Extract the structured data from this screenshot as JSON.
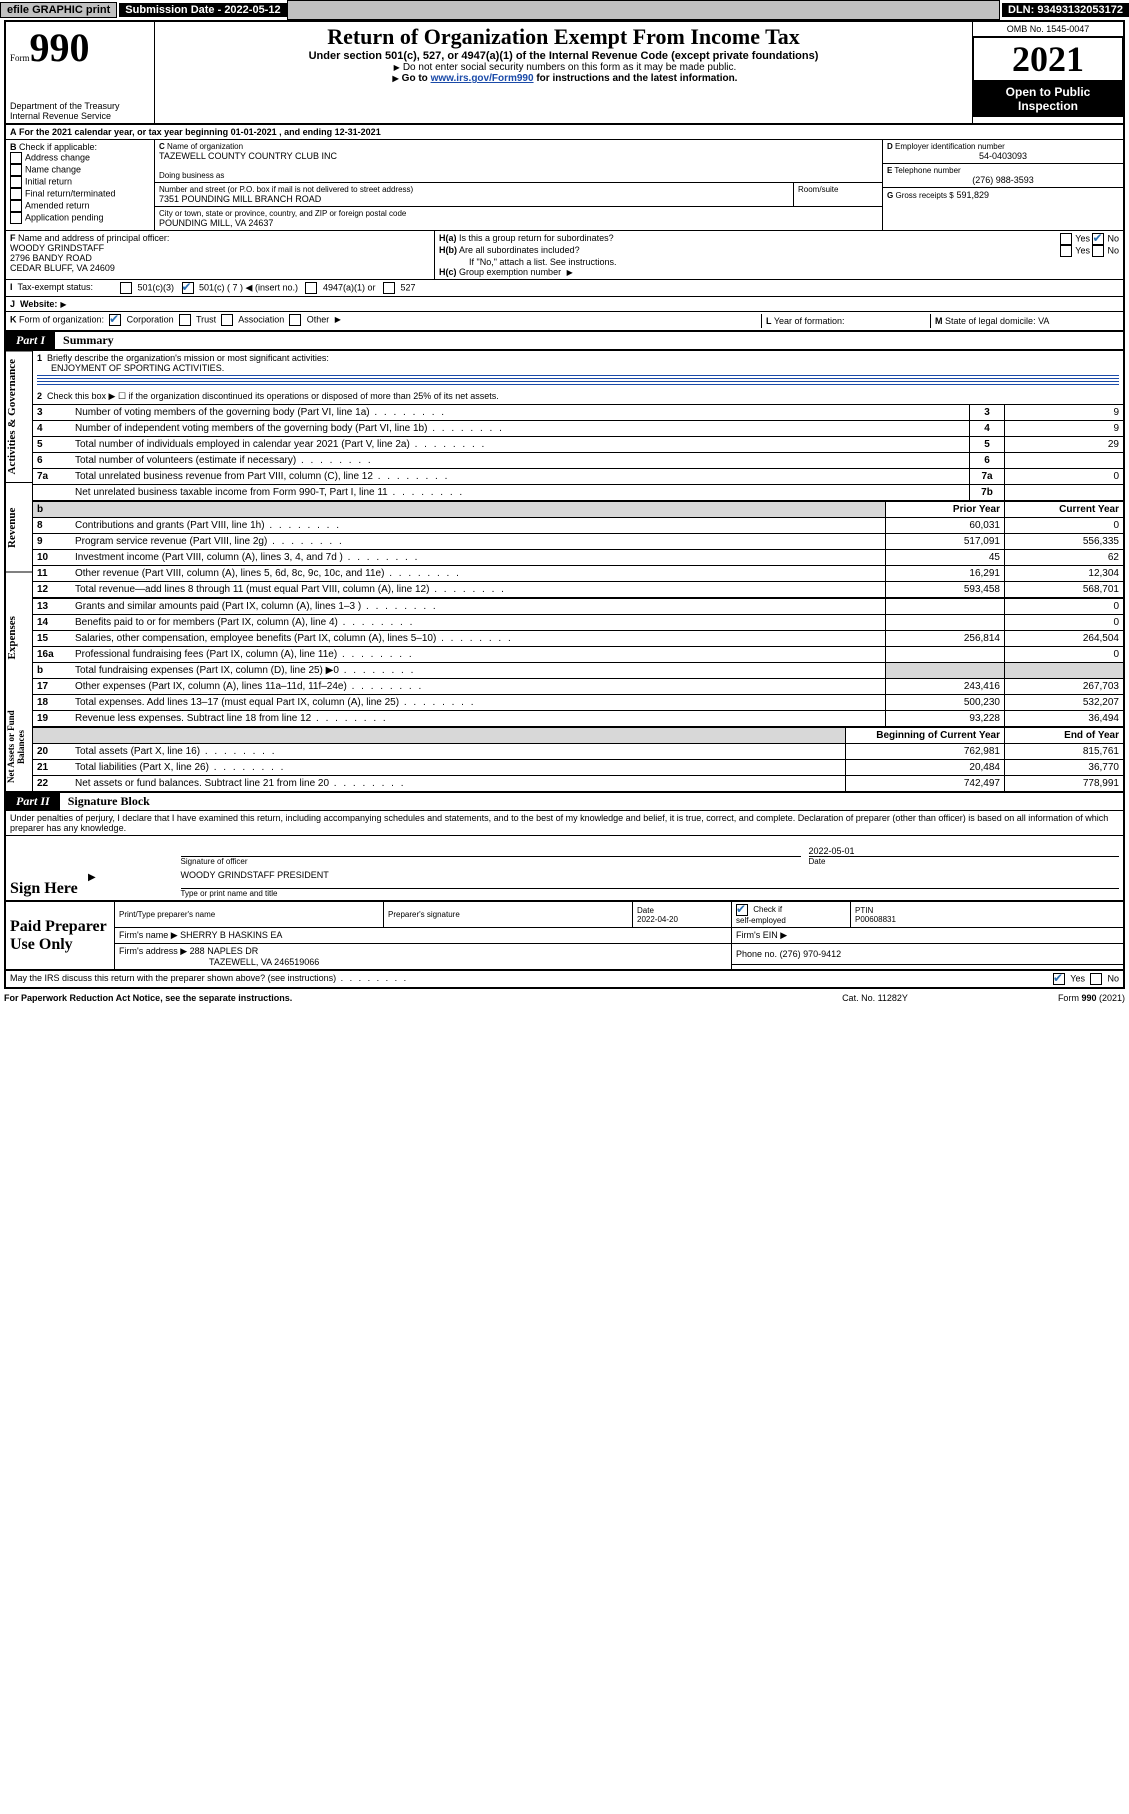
{
  "topbar": {
    "efile": "efile GRAPHIC print",
    "submission_label": "Submission Date - 2022-05-12",
    "dln": "DLN: 93493132053172"
  },
  "header": {
    "form_word": "Form",
    "form_num": "990",
    "dept": "Department of the Treasury",
    "irs": "Internal Revenue Service",
    "title": "Return of Organization Exempt From Income Tax",
    "sub": "Under section 501(c), 527, or 4947(a)(1) of the Internal Revenue Code (except private foundations)",
    "note1": "Do not enter social security numbers on this form as it may be made public.",
    "note2_a": "Go to ",
    "note2_link": "www.irs.gov/Form990",
    "note2_b": " for instructions and the latest information.",
    "omb": "OMB No. 1545-0047",
    "year": "2021",
    "open": "Open to Public Inspection"
  },
  "A": {
    "text_a": "For the 2021 calendar year, or tax year beginning ",
    "begin": "01-01-2021",
    "text_b": " , and ending ",
    "end": "12-31-2021"
  },
  "B": {
    "label": "Check if applicable:",
    "opts": [
      "Address change",
      "Name change",
      "Initial return",
      "Final return/terminated",
      "Amended return",
      "Application pending"
    ]
  },
  "C": {
    "name_label": "Name of organization",
    "name": "TAZEWELL COUNTY COUNTRY CLUB INC",
    "dba_label": "Doing business as",
    "dba": "",
    "addr_label": "Number and street (or P.O. box if mail is not delivered to street address)",
    "room_label": "Room/suite",
    "addr": "7351 POUNDING MILL BRANCH ROAD",
    "city_label": "City or town, state or province, country, and ZIP or foreign postal code",
    "city": "POUNDING MILL, VA  24637"
  },
  "D": {
    "label": "Employer identification number",
    "val": "54-0403093"
  },
  "E": {
    "label": "Telephone number",
    "val": "(276) 988-3593"
  },
  "G": {
    "label": "Gross receipts $",
    "val": "591,829"
  },
  "F": {
    "label": "Name and address of principal officer:",
    "lines": [
      "WOODY GRINDSTAFF",
      "2796 BANDY ROAD",
      "CEDAR BLUFF, VA  24609"
    ]
  },
  "H": {
    "a": "Is this a group return for subordinates?",
    "b": "Are all subordinates included?",
    "note": "If \"No,\" attach a list. See instructions.",
    "c": "Group exemption number"
  },
  "I": {
    "label": "Tax-exempt status:",
    "c7_insert": "(insert no.)"
  },
  "J": {
    "label": "Website:"
  },
  "K": {
    "label": "Form of organization:",
    "opts": [
      "Corporation",
      "Trust",
      "Association",
      "Other"
    ]
  },
  "L": {
    "label": "Year of formation:",
    "val": ""
  },
  "M": {
    "label": "State of legal domicile:",
    "val": "VA"
  },
  "partI": {
    "tag": "Part I",
    "title": "Summary",
    "line1_label": "Briefly describe the organization's mission or most significant activities:",
    "line1_text": "ENJOYMENT OF SPORTING ACTIVITIES.",
    "line2": "Check this box ▶ ☐  if the organization discontinued its operations or disposed of more than 25% of its net assets.",
    "col_prior": "Prior Year",
    "col_current": "Current Year",
    "col_begin": "Beginning of Current Year",
    "col_end": "End of Year",
    "rows_gov": [
      {
        "n": "3",
        "t": "Number of voting members of the governing body (Part VI, line 1a)",
        "k": "3",
        "v": "9"
      },
      {
        "n": "4",
        "t": "Number of independent voting members of the governing body (Part VI, line 1b)",
        "k": "4",
        "v": "9"
      },
      {
        "n": "5",
        "t": "Total number of individuals employed in calendar year 2021 (Part V, line 2a)",
        "k": "5",
        "v": "29"
      },
      {
        "n": "6",
        "t": "Total number of volunteers (estimate if necessary)",
        "k": "6",
        "v": ""
      },
      {
        "n": "7a",
        "t": "Total unrelated business revenue from Part VIII, column (C), line 12",
        "k": "7a",
        "v": "0"
      },
      {
        "n": "",
        "t": "Net unrelated business taxable income from Form 990-T, Part I, line 11",
        "k": "7b",
        "v": ""
      }
    ],
    "rows_rev": [
      {
        "n": "8",
        "t": "Contributions and grants (Part VIII, line 1h)",
        "p": "60,031",
        "c": "0"
      },
      {
        "n": "9",
        "t": "Program service revenue (Part VIII, line 2g)",
        "p": "517,091",
        "c": "556,335"
      },
      {
        "n": "10",
        "t": "Investment income (Part VIII, column (A), lines 3, 4, and 7d )",
        "p": "45",
        "c": "62"
      },
      {
        "n": "11",
        "t": "Other revenue (Part VIII, column (A), lines 5, 6d, 8c, 9c, 10c, and 11e)",
        "p": "16,291",
        "c": "12,304"
      },
      {
        "n": "12",
        "t": "Total revenue—add lines 8 through 11 (must equal Part VIII, column (A), line 12)",
        "p": "593,458",
        "c": "568,701"
      }
    ],
    "rows_exp": [
      {
        "n": "13",
        "t": "Grants and similar amounts paid (Part IX, column (A), lines 1–3 )",
        "p": "",
        "c": "0"
      },
      {
        "n": "14",
        "t": "Benefits paid to or for members (Part IX, column (A), line 4)",
        "p": "",
        "c": "0"
      },
      {
        "n": "15",
        "t": "Salaries, other compensation, employee benefits (Part IX, column (A), lines 5–10)",
        "p": "256,814",
        "c": "264,504"
      },
      {
        "n": "16a",
        "t": "Professional fundraising fees (Part IX, column (A), line 11e)",
        "p": "",
        "c": "0"
      },
      {
        "n": "b",
        "t": "Total fundraising expenses (Part IX, column (D), line 25) ▶0",
        "p": "__shade__",
        "c": "__shade__"
      },
      {
        "n": "17",
        "t": "Other expenses (Part IX, column (A), lines 11a–11d, 11f–24e)",
        "p": "243,416",
        "c": "267,703"
      },
      {
        "n": "18",
        "t": "Total expenses. Add lines 13–17 (must equal Part IX, column (A), line 25)",
        "p": "500,230",
        "c": "532,207"
      },
      {
        "n": "19",
        "t": "Revenue less expenses. Subtract line 18 from line 12",
        "p": "93,228",
        "c": "36,494"
      }
    ],
    "rows_net": [
      {
        "n": "20",
        "t": "Total assets (Part X, line 16)",
        "p": "762,981",
        "c": "815,761"
      },
      {
        "n": "21",
        "t": "Total liabilities (Part X, line 26)",
        "p": "20,484",
        "c": "36,770"
      },
      {
        "n": "22",
        "t": "Net assets or fund balances. Subtract line 21 from line 20",
        "p": "742,497",
        "c": "778,991"
      }
    ],
    "sections": {
      "gov": "Activities & Governance",
      "rev": "Revenue",
      "exp": "Expenses",
      "net": "Net Assets or Fund Balances"
    }
  },
  "partII": {
    "tag": "Part II",
    "title": "Signature Block",
    "jurat": "Under penalties of perjury, I declare that I have examined this return, including accompanying schedules and statements, and to the best of my knowledge and belief, it is true, correct, and complete. Declaration of preparer (other than officer) is based on all information of which preparer has any knowledge."
  },
  "sign": {
    "here": "Sign Here",
    "sig_label": "Signature of officer",
    "date_label": "Date",
    "date": "2022-05-01",
    "name": "WOODY GRINDSTAFF PRESIDENT",
    "name_label": "Type or print name and title"
  },
  "preparer": {
    "title": "Paid Preparer Use Only",
    "cols": [
      "Print/Type preparer's name",
      "Preparer's signature",
      "Date",
      "",
      "PTIN"
    ],
    "date": "2022-04-20",
    "check_label": "Check ☑ if self-employed",
    "ptin": "P00608831",
    "firm_label": "Firm's name ▶",
    "firm": "SHERRY B HASKINS EA",
    "ein_label": "Firm's EIN ▶",
    "ein": "",
    "addr_label": "Firm's address ▶",
    "addr1": "288 NAPLES DR",
    "addr2": "TAZEWELL, VA  246519066",
    "phone_label": "Phone no.",
    "phone": "(276) 970-9412"
  },
  "footer": {
    "discuss": "May the IRS discuss this return with the preparer shown above? (see instructions)",
    "pra": "For Paperwork Reduction Act Notice, see the separate instructions.",
    "cat": "Cat. No. 11282Y",
    "form": "Form 990 (2021)"
  },
  "style": {
    "colors": {
      "link": "#1a4aa8",
      "check": "#2a6fb3",
      "shade": "#d8d8d8",
      "black": "#000000",
      "white": "#ffffff",
      "topbtn": "#c0c0c0"
    }
  }
}
